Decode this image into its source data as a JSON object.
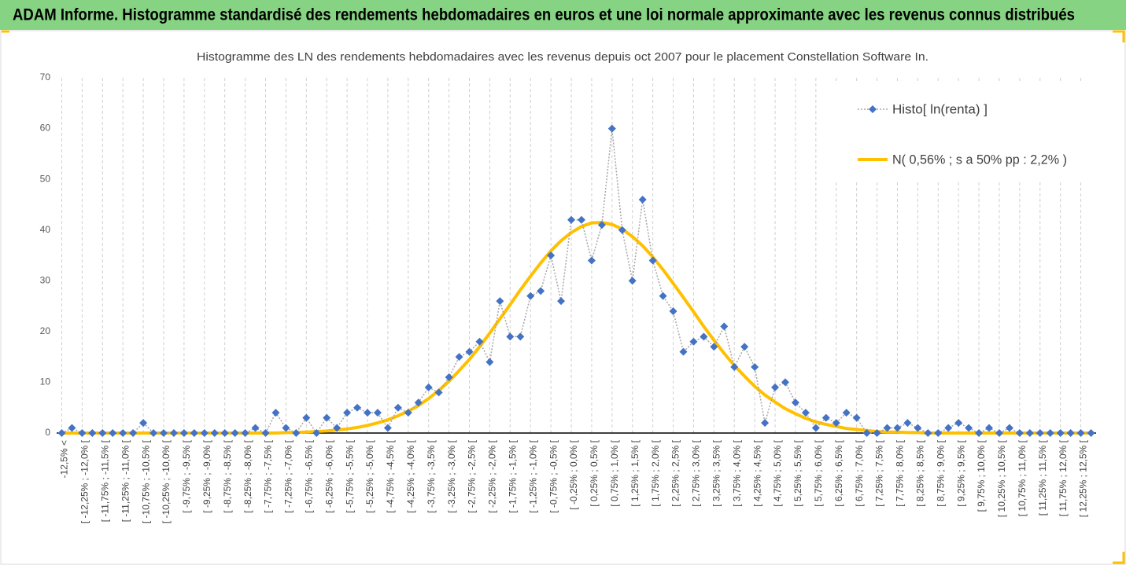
{
  "header": {
    "title": "ADAM Informe. Histogramme standardisé des rendements hebdomadaires en euros et une loi normale approximante avec les revenus connus distribués"
  },
  "chart_data": {
    "type": "line",
    "title": "Histogramme des LN des rendements hebdomadaires avec les revenus depuis oct 2007 pour le placement Constellation Software In.",
    "categories": [
      "-12,5% <",
      null,
      "[ -12,25% ; -12,0% [",
      null,
      "[ -11,75% ; -11,5% [",
      null,
      "[ -11,25% ; -11,0% [",
      null,
      "[ -10,75% ; -10,5% [",
      null,
      "[ -10,25% ; -10,0% [",
      null,
      "[ -9,75% ; -9,5% [",
      null,
      "[ -9,25% ; -9,0% [",
      null,
      "[ -8,75% ; -8,5% [",
      null,
      "[ -8,25% ; -8,0% [",
      null,
      "[ -7,75% ; -7,5% [",
      null,
      "[ -7,25% ; -7,0% [",
      null,
      "[ -6,75% ; -6,5% [",
      null,
      "[ -6,25% ; -6,0% [",
      null,
      "[ -5,75% ; -5,5% [",
      null,
      "[ -5,25% ; -5,0% [",
      null,
      "[ -4,75% ; -4,5% [",
      null,
      "[ -4,25% ; -4,0% [",
      null,
      "[ -3,75% ; -3,5% [",
      null,
      "[ -3,25% ; -3,0% [",
      null,
      "[ -2,75% ; -2,5% [",
      null,
      "[ -2,25% ; -2,0% [",
      null,
      "[ -1,75% ; -1,5% [",
      null,
      "[ -1,25% ; -1,0% [",
      null,
      "[ -0,75% ; -0,5% [",
      null,
      "[ -0,25% ; 0,0% [",
      null,
      "[ 0,25% ; 0,5% [",
      null,
      "[ 0,75% ; 1,0% [",
      null,
      "[ 1,25% ; 1,5% [",
      null,
      "[ 1,75% ; 2,0% [",
      null,
      "[ 2,25% ; 2,5% [",
      null,
      "[ 2,75% ; 3,0% [",
      null,
      "[ 3,25% ; 3,5% [",
      null,
      "[ 3,75% ; 4,0% [",
      null,
      "[ 4,25% ; 4,5% [",
      null,
      "[ 4,75% ; 5,0% [",
      null,
      "[ 5,25% ; 5,5% [",
      null,
      "[ 5,75% ; 6,0% [",
      null,
      "[ 6,25% ; 6,5% [",
      null,
      "[ 6,75% ; 7,0% [",
      null,
      "[ 7,25% ; 7,5% [",
      null,
      "[ 7,75% ; 8,0% [",
      null,
      "[ 8,25% ; 8,5% [",
      null,
      "[ 8,75% ; 9,0% [",
      null,
      "[ 9,25% ; 9,5% [",
      null,
      "[ 9,75% ; 10,0% [",
      null,
      "[ 10,25% ; 10,5% [",
      null,
      "[ 10,75% ; 11,0% [",
      null,
      "[ 11,25% ; 11,5% [",
      null,
      "[ 11,75% ; 12,0% [",
      null,
      "[ 12,25% ; 12,5% [",
      null
    ],
    "series": [
      {
        "name": "Histo[ ln(renta) ]",
        "color": "#4472c4",
        "line_color": "#a6a6a6",
        "values": [
          0,
          1,
          0,
          0,
          0,
          0,
          0,
          0,
          2,
          0,
          0,
          0,
          0,
          0,
          0,
          0,
          0,
          0,
          0,
          1,
          0,
          4,
          1,
          0,
          3,
          0,
          3,
          1,
          4,
          5,
          4,
          4,
          1,
          5,
          4,
          6,
          9,
          8,
          11,
          15,
          16,
          18,
          14,
          26,
          19,
          19,
          27,
          28,
          35,
          26,
          42,
          42,
          34,
          41,
          60,
          40,
          30,
          46,
          34,
          27,
          24,
          16,
          18,
          19,
          17,
          21,
          13,
          17,
          13,
          2,
          9,
          10,
          6,
          4,
          1,
          3,
          2,
          4,
          3,
          0,
          0,
          1,
          1,
          2,
          1,
          0,
          0,
          1,
          2,
          1,
          0,
          1,
          0,
          1,
          0,
          0,
          0,
          0,
          0,
          0,
          0,
          0
        ]
      },
      {
        "name": "N( 0,56% ; s a 50% pp : 2,2% )",
        "color": "#ffc000",
        "values": [
          0,
          0,
          0,
          0,
          0,
          0,
          0,
          0,
          0,
          0,
          0,
          0,
          0,
          0,
          0,
          0,
          0,
          0,
          0,
          0,
          0,
          0,
          0.1,
          0.1,
          0.2,
          0.3,
          0.4,
          0.6,
          0.8,
          1.1,
          1.5,
          2.0,
          2.6,
          3.4,
          4.3,
          5.4,
          6.8,
          8.4,
          10.2,
          12.3,
          14.5,
          17.0,
          19.7,
          22.5,
          25.3,
          28.2,
          30.9,
          33.5,
          35.9,
          37.9,
          39.5,
          40.7,
          41.4,
          41.5,
          41.1,
          40.2,
          38.7,
          36.9,
          34.7,
          32.2,
          29.5,
          26.7,
          23.9,
          21.0,
          18.3,
          15.7,
          13.3,
          11.2,
          9.2,
          7.5,
          6.1,
          4.8,
          3.8,
          2.9,
          2.2,
          1.7,
          1.3,
          0.9,
          0.7,
          0.5,
          0.3,
          0.2,
          0.2,
          0.1,
          0.1,
          0,
          0,
          0,
          0,
          0,
          0,
          0,
          0,
          0,
          0,
          0,
          0,
          0,
          0,
          0,
          0,
          0
        ]
      }
    ],
    "ylim": [
      0,
      70
    ],
    "yticks": [
      0,
      10,
      20,
      30,
      40,
      50,
      60,
      70
    ],
    "xgrid": true,
    "legend": "top-right"
  }
}
